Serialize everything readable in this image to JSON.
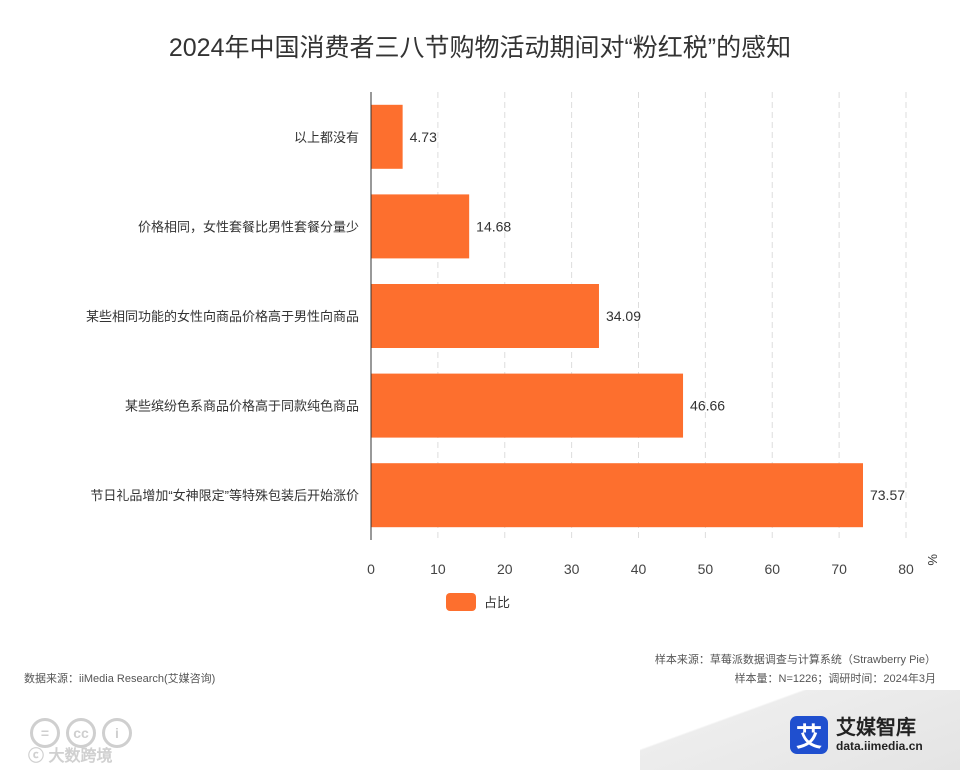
{
  "chart_data": {
    "type": "bar",
    "orientation": "horizontal",
    "title": "2024年中国消费者三八节购物活动期间对“粉红税”的感知",
    "categories": [
      "以上都没有",
      "价格相同，女性套餐比男性套餐分量少",
      "某些相同功能的女性向商品价格高于男性向商品",
      "某些缤纷色系商品价格高于同款纯色商品",
      "节日礼品增加“女神限定”等特殊包装后开始涨价"
    ],
    "series": [
      {
        "name": "占比",
        "values": [
          4.73,
          14.68,
          34.09,
          46.66,
          73.57
        ]
      }
    ],
    "xlim": [
      0,
      80
    ],
    "xticks": [
      0,
      10,
      20,
      30,
      40,
      50,
      60,
      70,
      80
    ],
    "xunit": "%",
    "grid": "vertical-dashed",
    "legend_position": "bottom",
    "bar_color": "#fd6f2e"
  },
  "footer": {
    "data_source": "数据来源：iiMedia Research(艾媒咨询)",
    "sample_source": "样本来源：草莓派数据调查与计算系统（Strawberry Pie）",
    "sample_size": "样本量：N=1226；调研时间：2024年3月"
  },
  "brand": {
    "logo_char": "艾",
    "name": "艾媒智库",
    "url": "data.iimedia.cn"
  },
  "cc_icons": [
    "=",
    "cc",
    "i"
  ],
  "watermark": "ⓒ 大数跨境"
}
